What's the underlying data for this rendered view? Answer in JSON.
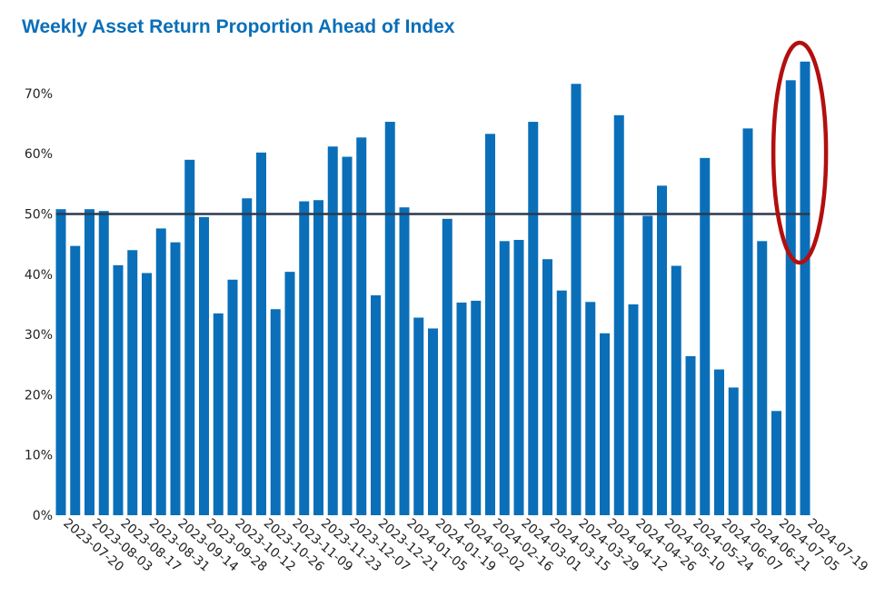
{
  "chart_data": {
    "type": "bar",
    "title": "Weekly Asset Return Proportion Ahead of Index",
    "xlabel": "",
    "ylabel": "",
    "ylim": [
      0,
      0.78
    ],
    "y_ticks": [
      {
        "value": 0.0,
        "label": "0%"
      },
      {
        "value": 0.1,
        "label": "10%"
      },
      {
        "value": 0.2,
        "label": "20%"
      },
      {
        "value": 0.3,
        "label": "30%"
      },
      {
        "value": 0.4,
        "label": "40%"
      },
      {
        "value": 0.5,
        "label": "50%"
      },
      {
        "value": 0.6,
        "label": "60%"
      },
      {
        "value": 0.7,
        "label": "70%"
      }
    ],
    "x_tick_labels": [
      "2023-07-20",
      "2023-08-03",
      "2023-08-17",
      "2023-08-31",
      "2023-09-14",
      "2023-09-28",
      "2023-10-12",
      "2023-10-26",
      "2023-11-09",
      "2023-11-23",
      "2023-12-07",
      "2023-12-21",
      "2024-01-05",
      "2024-01-19",
      "2024-02-02",
      "2024-02-16",
      "2024-03-01",
      "2024-03-15",
      "2024-03-29",
      "2024-04-12",
      "2024-04-26",
      "2024-05-10",
      "2024-05-24",
      "2024-06-07",
      "2024-06-21",
      "2024-07-05",
      "2024-07-19"
    ],
    "values": [
      0.508,
      0.447,
      0.508,
      0.505,
      0.415,
      0.44,
      0.402,
      0.476,
      0.453,
      0.59,
      0.495,
      0.335,
      0.391,
      0.526,
      0.602,
      0.342,
      0.404,
      0.521,
      0.523,
      0.612,
      0.595,
      0.627,
      0.365,
      0.653,
      0.511,
      0.328,
      0.31,
      0.492,
      0.353,
      0.356,
      0.633,
      0.455,
      0.457,
      0.653,
      0.425,
      0.373,
      0.716,
      0.354,
      0.302,
      0.664,
      0.35,
      0.497,
      0.547,
      0.414,
      0.264,
      0.593,
      0.242,
      0.212,
      0.642,
      0.455,
      0.173,
      0.722,
      0.753
    ],
    "reference_line": 0.5,
    "grid": false,
    "legend": "none",
    "colors": {
      "bar": "#0a6fb8",
      "reference_line": "#2b3a4e",
      "highlight_ellipse": "#b30f0f",
      "title": "#0a6fb8"
    },
    "annotations": [
      {
        "type": "ellipse",
        "highlights": "last two bars"
      }
    ]
  }
}
